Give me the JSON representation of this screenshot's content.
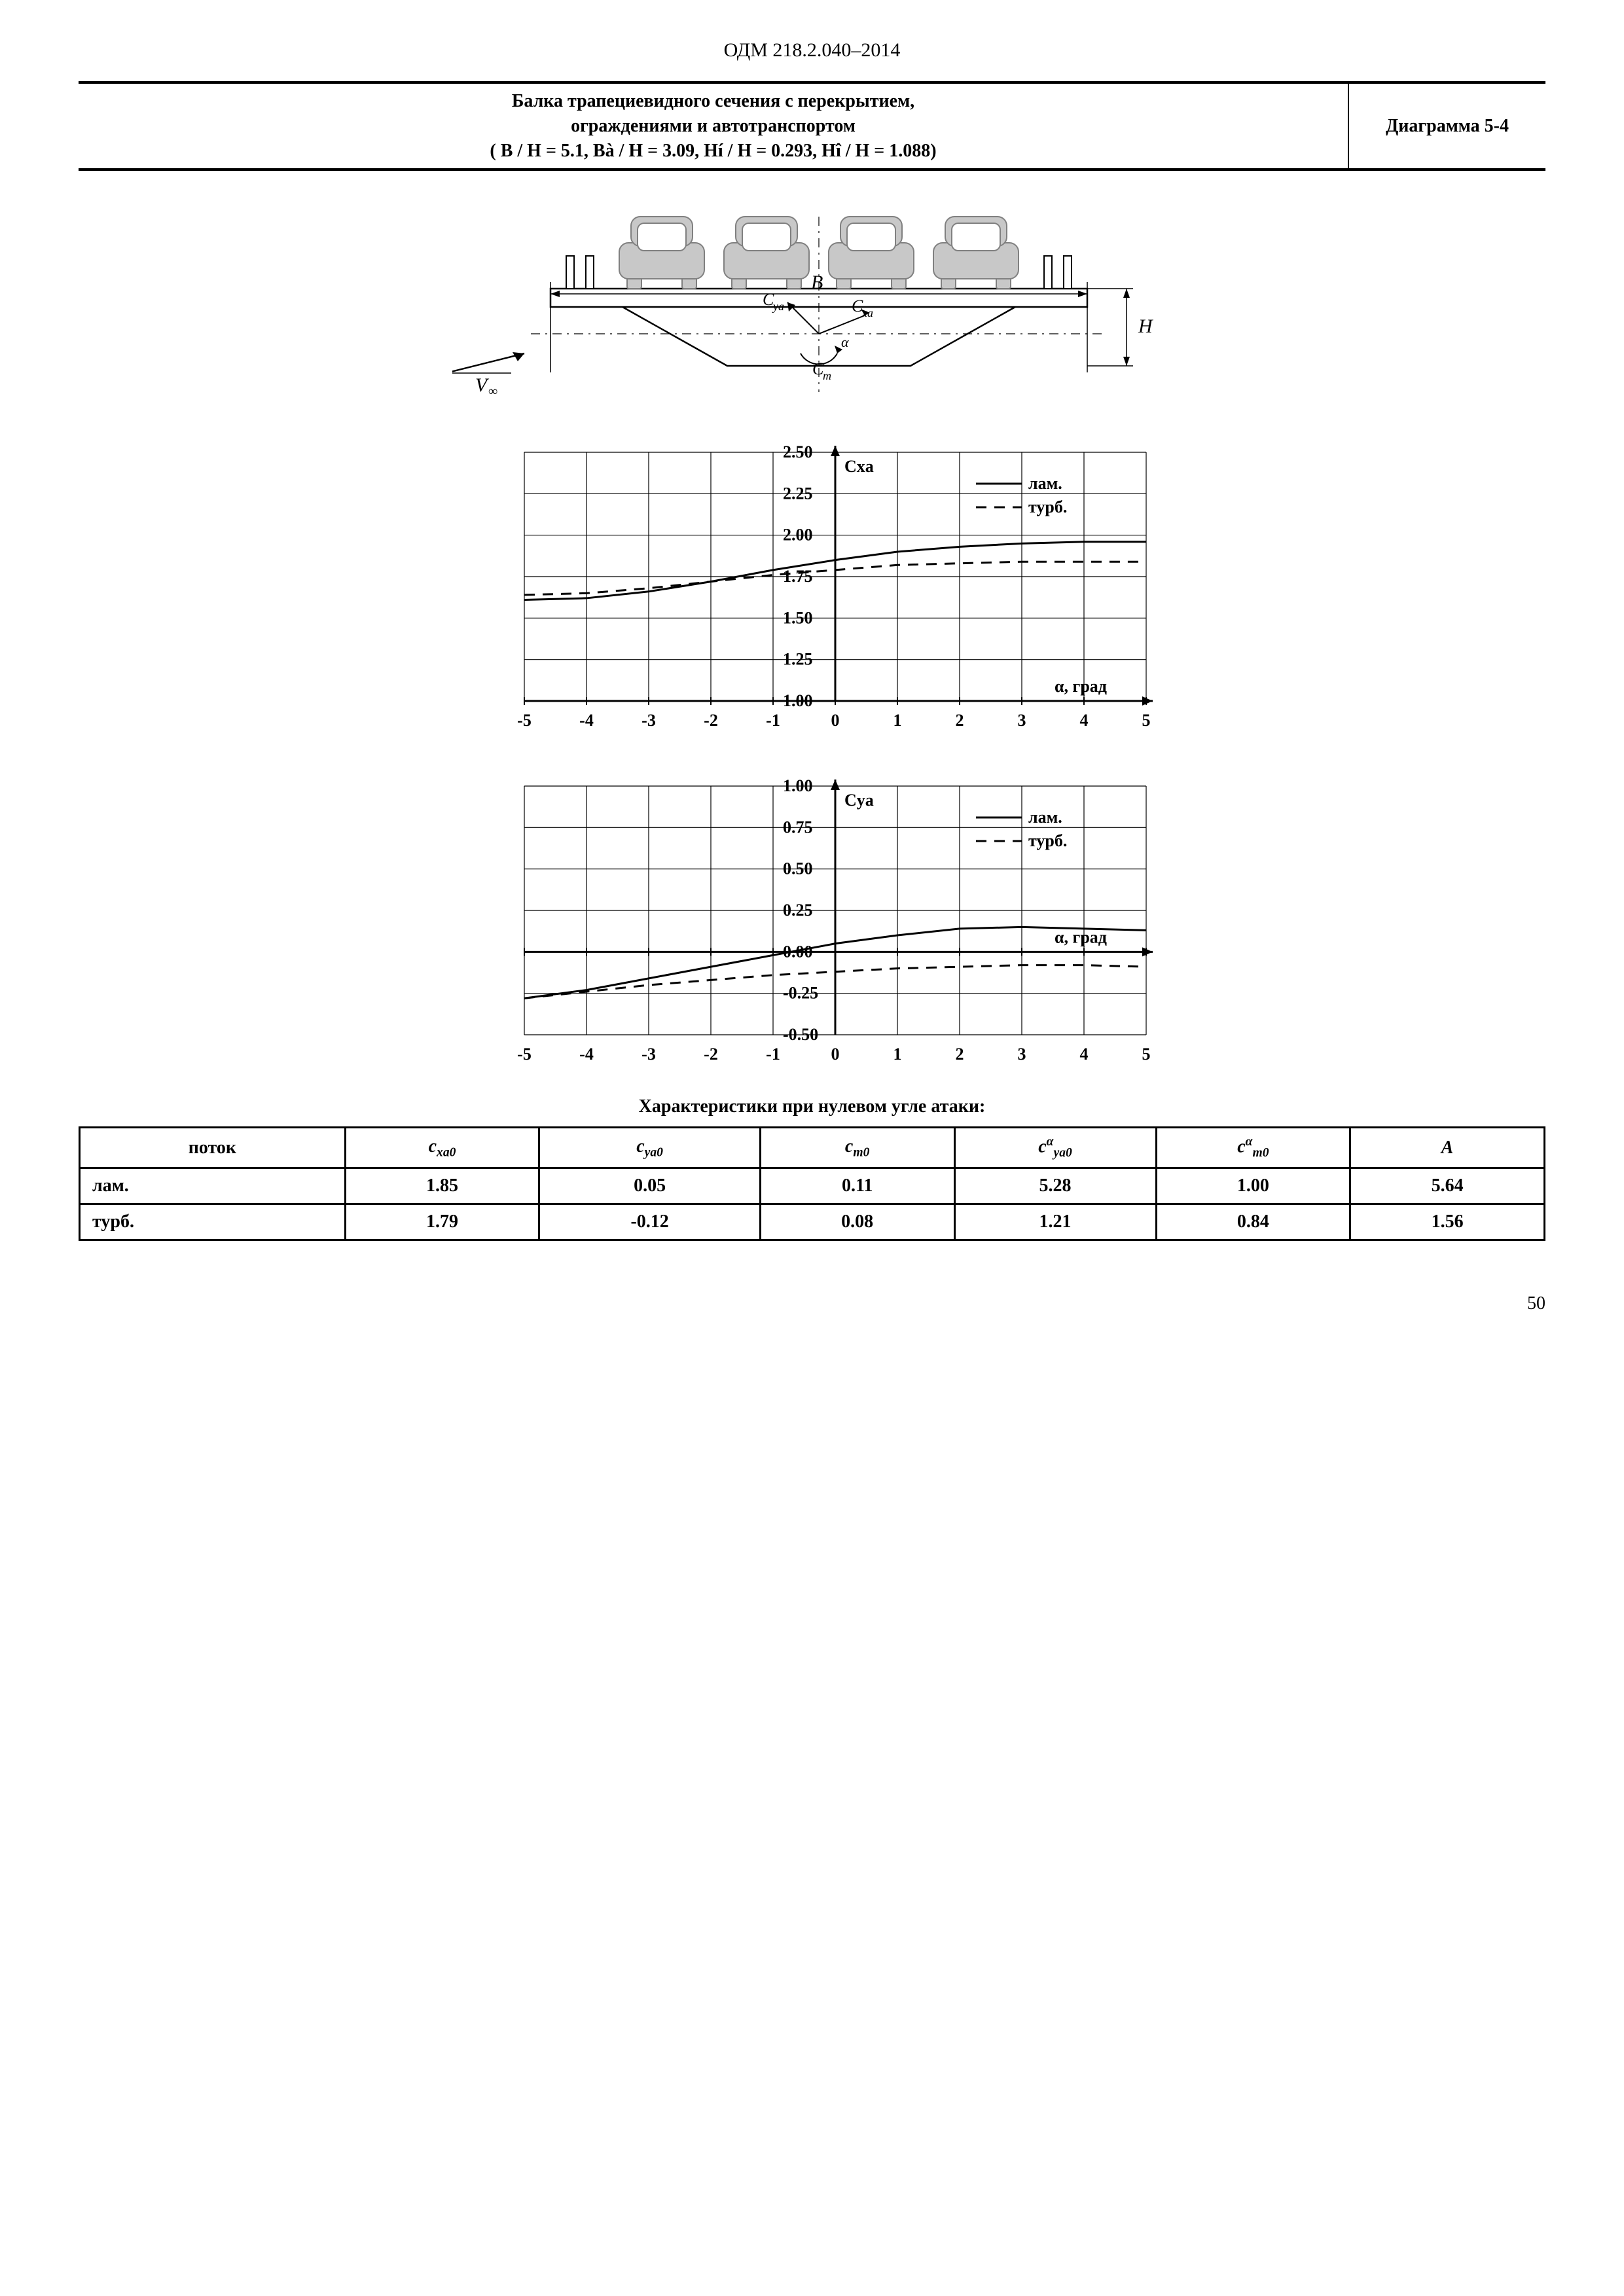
{
  "header": "ОДМ 218.2.040–2014",
  "title": {
    "line1": "Балка трапециевидного сечения с перекрытием,",
    "line2": "ограждениями и автотранспортом",
    "line3": "( B / H = 5.1,  Bà / H = 3.09,  Hí / H = 0.293,  Hî / H = 1.088)",
    "diagram_label": "Диаграмма 5-4"
  },
  "cross_section": {
    "labels": {
      "B": "B",
      "H": "H",
      "Cya": "Cya",
      "Cxa": "Cxa",
      "Cm": "Cm",
      "alpha": "α",
      "Vinf": "V∞",
      "alpha2": "α"
    },
    "colors": {
      "car_fill": "#c8c8c8",
      "car_stroke": "#808080",
      "line": "#000000",
      "dash": "#000000"
    }
  },
  "chart_cxa": {
    "type": "line",
    "ylabel": "Cxa",
    "xlabel": "α, град",
    "xlim": [
      -5,
      5
    ],
    "xtick_step": 1,
    "ylim": [
      1.0,
      2.5
    ],
    "ytick_step": 0.25,
    "legend": [
      {
        "label": "лам.",
        "style": "solid"
      },
      {
        "label": "турб.",
        "style": "dash"
      }
    ],
    "series": {
      "lam": [
        [
          -5,
          1.61
        ],
        [
          -4,
          1.62
        ],
        [
          -3,
          1.66
        ],
        [
          -2,
          1.72
        ],
        [
          -1,
          1.79
        ],
        [
          0,
          1.85
        ],
        [
          1,
          1.9
        ],
        [
          2,
          1.93
        ],
        [
          3,
          1.95
        ],
        [
          4,
          1.96
        ],
        [
          5,
          1.96
        ]
      ],
      "turb": [
        [
          -5,
          1.64
        ],
        [
          -4,
          1.65
        ],
        [
          -3,
          1.68
        ],
        [
          -2,
          1.72
        ],
        [
          -1,
          1.76
        ],
        [
          0,
          1.79
        ],
        [
          1,
          1.82
        ],
        [
          2,
          1.83
        ],
        [
          3,
          1.84
        ],
        [
          4,
          1.84
        ],
        [
          5,
          1.84
        ]
      ]
    },
    "colors": {
      "axis": "#000000",
      "grid": "#000000",
      "line": "#000000"
    },
    "line_width": 3,
    "font_size": 26
  },
  "chart_cya": {
    "type": "line",
    "ylabel": "Cya",
    "xlabel": "α, град",
    "xlim": [
      -5,
      5
    ],
    "xtick_step": 1,
    "ylim": [
      -0.5,
      1.0
    ],
    "ytick_step": 0.25,
    "legend": [
      {
        "label": "лам.",
        "style": "solid"
      },
      {
        "label": "турб.",
        "style": "dash"
      }
    ],
    "series": {
      "lam": [
        [
          -5,
          -0.28
        ],
        [
          -4,
          -0.23
        ],
        [
          -3,
          -0.16
        ],
        [
          -2,
          -0.09
        ],
        [
          -1,
          -0.02
        ],
        [
          0,
          0.05
        ],
        [
          1,
          0.1
        ],
        [
          2,
          0.14
        ],
        [
          3,
          0.15
        ],
        [
          4,
          0.14
        ],
        [
          5,
          0.13
        ]
      ],
      "turb": [
        [
          -5,
          -0.28
        ],
        [
          -4,
          -0.24
        ],
        [
          -3,
          -0.2
        ],
        [
          -2,
          -0.17
        ],
        [
          -1,
          -0.14
        ],
        [
          0,
          -0.12
        ],
        [
          1,
          -0.1
        ],
        [
          2,
          -0.09
        ],
        [
          3,
          -0.08
        ],
        [
          4,
          -0.08
        ],
        [
          5,
          -0.09
        ]
      ]
    },
    "colors": {
      "axis": "#000000",
      "grid": "#000000",
      "line": "#000000"
    },
    "line_width": 3,
    "font_size": 26
  },
  "table": {
    "caption": "Характеристики при нулевом угле атаки:",
    "columns": [
      "поток",
      "c_xa0",
      "c_ya0",
      "c_m0",
      "c_ya0^α",
      "c_m0^α",
      "A"
    ],
    "rows": [
      {
        "label": "лам.",
        "values": [
          "1.85",
          "0.05",
          "0.11",
          "5.28",
          "1.00",
          "5.64"
        ]
      },
      {
        "label": "турб.",
        "values": [
          "1.79",
          "-0.12",
          "0.08",
          "1.21",
          "0.84",
          "1.56"
        ]
      }
    ]
  },
  "page_number": "50"
}
